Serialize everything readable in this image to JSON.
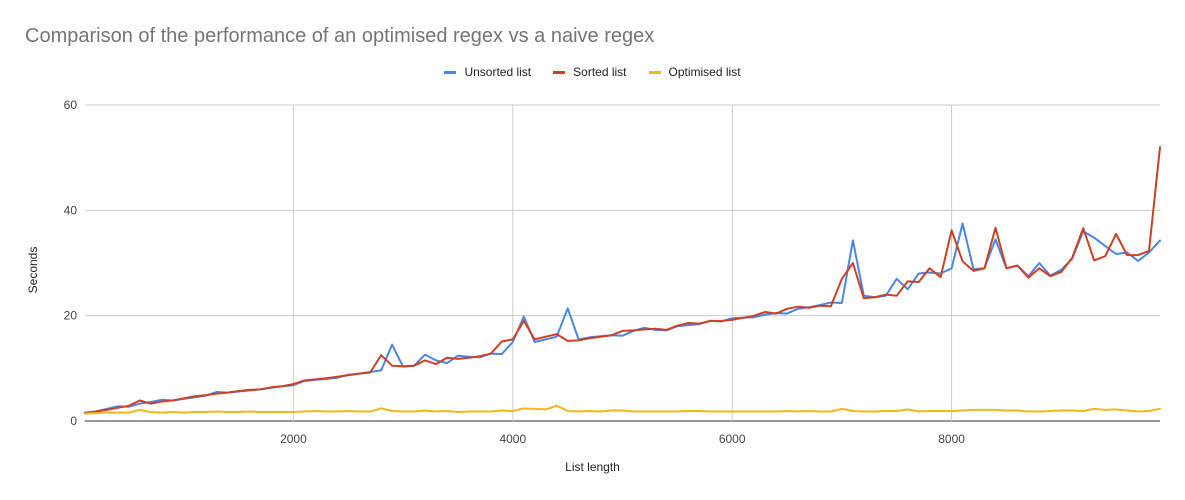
{
  "chart_data": {
    "type": "line",
    "title": "Comparison of the performance of an optimised regex vs a naive regex",
    "xlabel": "List length",
    "ylabel": "Seconds",
    "xlim": [
      100,
      9900
    ],
    "ylim": [
      0,
      60
    ],
    "x_ticks": [
      2000,
      4000,
      6000,
      8000
    ],
    "y_ticks": [
      0,
      20,
      40,
      60
    ],
    "grid": true,
    "legend_position": "top",
    "x": [
      100,
      200,
      300,
      400,
      500,
      600,
      700,
      800,
      900,
      1000,
      1100,
      1200,
      1300,
      1400,
      1500,
      1600,
      1700,
      1800,
      1900,
      2000,
      2100,
      2200,
      2300,
      2400,
      2500,
      2600,
      2700,
      2800,
      2900,
      3000,
      3100,
      3200,
      3300,
      3400,
      3500,
      3600,
      3700,
      3800,
      3900,
      4000,
      4100,
      4200,
      4300,
      4400,
      4500,
      4600,
      4700,
      4800,
      4900,
      5000,
      5100,
      5200,
      5300,
      5400,
      5500,
      5600,
      5700,
      5800,
      5900,
      6000,
      6100,
      6200,
      6300,
      6400,
      6500,
      6600,
      6700,
      6800,
      6900,
      7000,
      7100,
      7200,
      7300,
      7400,
      7500,
      7600,
      7700,
      7800,
      7900,
      8000,
      8100,
      8200,
      8300,
      8400,
      8500,
      8600,
      8700,
      8800,
      8900,
      9000,
      9100,
      9200,
      9300,
      9400,
      9500,
      9600,
      9700,
      9800,
      9900
    ],
    "series": [
      {
        "name": "Unsorted list",
        "color": "#4a86e8",
        "values": [
          1.6,
          1.8,
          2.3,
          2.8,
          2.7,
          3.3,
          3.6,
          4.0,
          3.9,
          4.2,
          4.5,
          4.8,
          5.5,
          5.4,
          5.6,
          5.8,
          6.0,
          6.3,
          6.6,
          6.8,
          7.6,
          7.8,
          8.0,
          8.2,
          8.8,
          9.0,
          9.3,
          9.6,
          14.5,
          10.3,
          10.5,
          12.6,
          11.5,
          11.0,
          12.4,
          12.2,
          12.1,
          12.8,
          12.7,
          15.0,
          19.8,
          15.0,
          15.5,
          16.0,
          21.4,
          15.5,
          15.9,
          16.1,
          16.3,
          16.2,
          17.1,
          17.7,
          17.3,
          17.2,
          18.0,
          18.2,
          18.4,
          19.0,
          18.9,
          19.5,
          19.6,
          19.7,
          20.2,
          20.5,
          20.4,
          21.3,
          21.6,
          22.0,
          22.5,
          22.4,
          34.3,
          23.8,
          23.5,
          23.8,
          27.0,
          25.0,
          28.0,
          28.2,
          28.0,
          29.0,
          37.5,
          28.8,
          29.0,
          34.5,
          29.0,
          29.5,
          27.5,
          30.0,
          27.6,
          28.7,
          30.8,
          36.0,
          34.8,
          33.2,
          31.7,
          32.0,
          30.4,
          32.0,
          34.3
        ]
      },
      {
        "name": "Sorted list",
        "color": "#cc4125",
        "values": [
          1.5,
          1.8,
          2.1,
          2.5,
          2.9,
          3.9,
          3.3,
          3.7,
          3.9,
          4.3,
          4.7,
          4.9,
          5.2,
          5.4,
          5.7,
          5.9,
          6.0,
          6.4,
          6.6,
          7.0,
          7.7,
          7.9,
          8.1,
          8.4,
          8.7,
          9.0,
          9.2,
          12.5,
          10.5,
          10.4,
          10.5,
          11.5,
          10.8,
          12.0,
          11.8,
          12.0,
          12.3,
          12.8,
          15.1,
          15.5,
          19.0,
          15.5,
          16.0,
          16.5,
          15.2,
          15.3,
          15.7,
          16.0,
          16.3,
          17.1,
          17.2,
          17.4,
          17.5,
          17.3,
          18.1,
          18.6,
          18.5,
          19.0,
          19.0,
          19.2,
          19.6,
          20.0,
          20.7,
          20.4,
          21.3,
          21.7,
          21.5,
          21.9,
          21.8,
          27.0,
          30.0,
          23.3,
          23.5,
          24.0,
          23.8,
          26.5,
          26.4,
          29.0,
          27.3,
          36.2,
          30.3,
          28.5,
          29.0,
          36.7,
          29.0,
          29.5,
          27.2,
          29.0,
          27.5,
          28.3,
          31.0,
          36.6,
          30.5,
          31.3,
          35.5,
          31.5,
          31.5,
          32.3,
          52.0
        ]
      },
      {
        "name": "Optimised list",
        "color": "#f1b81c",
        "values": [
          1.4,
          1.5,
          1.6,
          1.6,
          1.6,
          2.1,
          1.7,
          1.6,
          1.7,
          1.6,
          1.7,
          1.7,
          1.8,
          1.7,
          1.7,
          1.8,
          1.7,
          1.7,
          1.7,
          1.7,
          1.8,
          1.9,
          1.8,
          1.8,
          1.9,
          1.8,
          1.8,
          2.4,
          1.9,
          1.8,
          1.8,
          2.0,
          1.8,
          1.9,
          1.7,
          1.8,
          1.8,
          1.8,
          2.0,
          1.9,
          2.4,
          2.3,
          2.2,
          2.9,
          1.9,
          1.8,
          1.9,
          1.8,
          2.0,
          2.0,
          1.8,
          1.8,
          1.8,
          1.8,
          1.8,
          1.9,
          1.9,
          1.8,
          1.8,
          1.8,
          1.8,
          1.8,
          1.8,
          1.8,
          1.9,
          1.8,
          1.9,
          1.8,
          1.8,
          2.3,
          1.9,
          1.8,
          1.8,
          1.9,
          1.9,
          2.2,
          1.8,
          1.9,
          1.9,
          1.9,
          2.0,
          2.1,
          2.1,
          2.1,
          2.0,
          2.0,
          1.8,
          1.8,
          1.9,
          2.0,
          2.0,
          1.9,
          2.3,
          2.1,
          2.2,
          2.0,
          1.8,
          1.9,
          2.3
        ]
      }
    ]
  }
}
